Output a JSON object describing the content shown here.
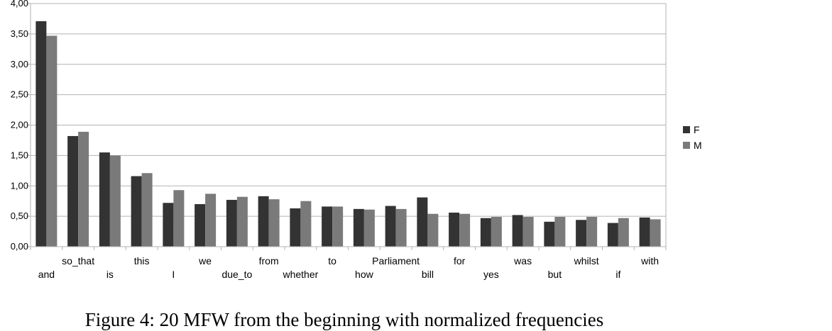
{
  "chart_data": {
    "type": "bar",
    "title": "",
    "xlabel": "",
    "ylabel": "",
    "ylim": [
      0,
      4
    ],
    "yticks": [
      0,
      0.5,
      1,
      1.5,
      2,
      2.5,
      3,
      3.5,
      4
    ],
    "ytick_labels": [
      "0,00",
      "0,50",
      "1,00",
      "1,50",
      "2,00",
      "2,50",
      "3,00",
      "3,50",
      "4,00"
    ],
    "grid": true,
    "legend_position": "right",
    "categories": [
      "and",
      "so_that",
      "is",
      "this",
      "I",
      "we",
      "due_to",
      "from",
      "whether",
      "to",
      "how",
      "Parliament",
      "bill",
      "for",
      "yes",
      "was",
      "but",
      "whilst",
      "if",
      "with"
    ],
    "series": [
      {
        "name": "F",
        "color": "#333333",
        "values": [
          3.71,
          1.82,
          1.55,
          1.16,
          0.72,
          0.7,
          0.77,
          0.83,
          0.63,
          0.66,
          0.62,
          0.67,
          0.81,
          0.56,
          0.47,
          0.52,
          0.41,
          0.44,
          0.39,
          0.48
        ]
      },
      {
        "name": "M",
        "color": "#7a7a7a",
        "values": [
          3.47,
          1.89,
          1.5,
          1.21,
          0.93,
          0.87,
          0.82,
          0.78,
          0.75,
          0.66,
          0.61,
          0.62,
          0.54,
          0.54,
          0.49,
          0.49,
          0.49,
          0.49,
          0.47,
          0.45
        ]
      }
    ]
  },
  "caption": "Figure 4: 20 MFW from the beginning with normalized frequencies"
}
